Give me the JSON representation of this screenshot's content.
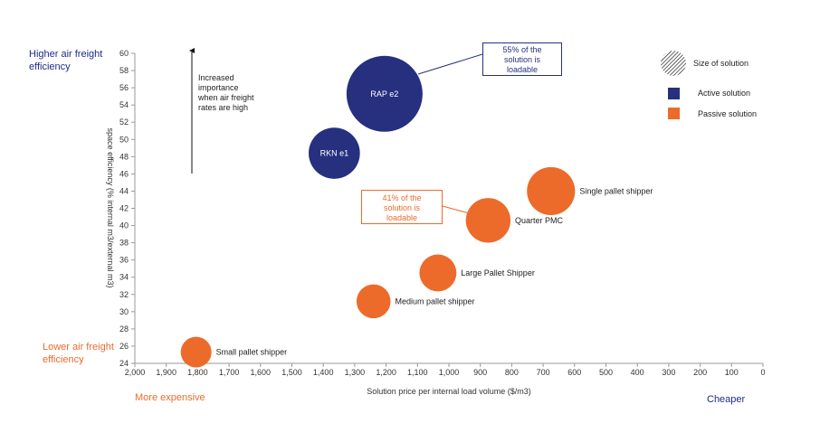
{
  "chart_data": {
    "type": "scatter",
    "subtype": "bubble",
    "xlabel": "Solution price per internal load volume  ($/m3)",
    "ylabel": "space efficiency (% internal m3/external  m3)",
    "xlim": [
      2000,
      0
    ],
    "ylim": [
      24,
      60
    ],
    "x_reversed": true,
    "x_ticks": [
      2000,
      1900,
      1800,
      1700,
      1600,
      1500,
      1400,
      1300,
      1200,
      1100,
      1000,
      900,
      800,
      700,
      600,
      500,
      400,
      300,
      200,
      100,
      0
    ],
    "y_ticks": [
      24,
      26,
      28,
      30,
      32,
      34,
      36,
      38,
      40,
      42,
      44,
      46,
      48,
      50,
      52,
      54,
      56,
      58,
      60
    ],
    "grid": false,
    "legend_position": "top-right",
    "legend": {
      "size": "Size of solution",
      "active": "Active solution",
      "passive": "Passive solution"
    },
    "colors": {
      "active": "#26307f",
      "passive": "#ec6b2b"
    },
    "points": [
      {
        "name": "RAP e2",
        "x": 1205,
        "y": 55.3,
        "size": 55,
        "type": "active",
        "label_inside": true
      },
      {
        "name": "RKN e1",
        "x": 1365,
        "y": 48.4,
        "size": 25,
        "type": "active",
        "label_inside": true
      },
      {
        "name": "Single pallet shipper",
        "x": 675,
        "y": 44,
        "size": 22,
        "type": "passive",
        "label_inside": false
      },
      {
        "name": "Quarter PMC",
        "x": 875,
        "y": 40.6,
        "size": 19,
        "type": "passive",
        "label_inside": false
      },
      {
        "name": "Large Pallet Shipper",
        "x": 1035,
        "y": 34.5,
        "size": 13,
        "type": "passive",
        "label_inside": false
      },
      {
        "name": "Medium pallet shipper",
        "x": 1240,
        "y": 31.2,
        "size": 11,
        "type": "passive",
        "label_inside": false
      },
      {
        "name": "Small pallet shipper",
        "x": 1805,
        "y": 25.3,
        "size": 9,
        "type": "passive",
        "label_inside": false
      }
    ],
    "annotations": {
      "rap_callout": "55% of the solution  is loadable",
      "pmc_callout": "41% of the solution  is loadable",
      "arrow_note": "Increased importance when air freight rates are high"
    }
  },
  "corners": {
    "top_left": "Higher air freight efficiency",
    "bottom_left": "Lower air freight efficiency",
    "bottom_left_x": "More expensive",
    "bottom_right_x": "Cheaper"
  }
}
